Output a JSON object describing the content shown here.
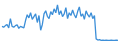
{
  "chart_data": {
    "type": "line",
    "color": "#3d8fd8",
    "grid": false,
    "tick_labels": false,
    "xlim": [
      1,
      70
    ],
    "ylim": [
      0,
      100
    ],
    "x": [
      1,
      2,
      3,
      4,
      5,
      6,
      7,
      8,
      9,
      10,
      11,
      12,
      13,
      14,
      15,
      16,
      17,
      18,
      19,
      20,
      21,
      22,
      23,
      24,
      25,
      26,
      27,
      28,
      29,
      30,
      31,
      32,
      33,
      34,
      35,
      36,
      37,
      38,
      39,
      40,
      41,
      42,
      43,
      44,
      45,
      46,
      47,
      48,
      49,
      50,
      51,
      52,
      53,
      54,
      55,
      56,
      57,
      58,
      59,
      60,
      61,
      62,
      63,
      64,
      65,
      66,
      67,
      68,
      69,
      70
    ],
    "values": [
      40,
      38,
      42,
      45,
      36,
      60,
      40,
      38,
      42,
      44,
      35,
      40,
      38,
      36,
      55,
      70,
      62,
      75,
      58,
      65,
      72,
      50,
      68,
      30,
      45,
      72,
      80,
      66,
      60,
      78,
      70,
      85,
      75,
      95,
      70,
      80,
      65,
      72,
      88,
      60,
      75,
      68,
      82,
      70,
      62,
      78,
      90,
      66,
      72,
      58,
      80,
      70,
      64,
      75,
      60,
      68,
      8,
      5,
      6,
      4,
      5,
      4,
      5,
      4,
      4,
      5,
      4,
      4,
      5,
      4
    ]
  }
}
